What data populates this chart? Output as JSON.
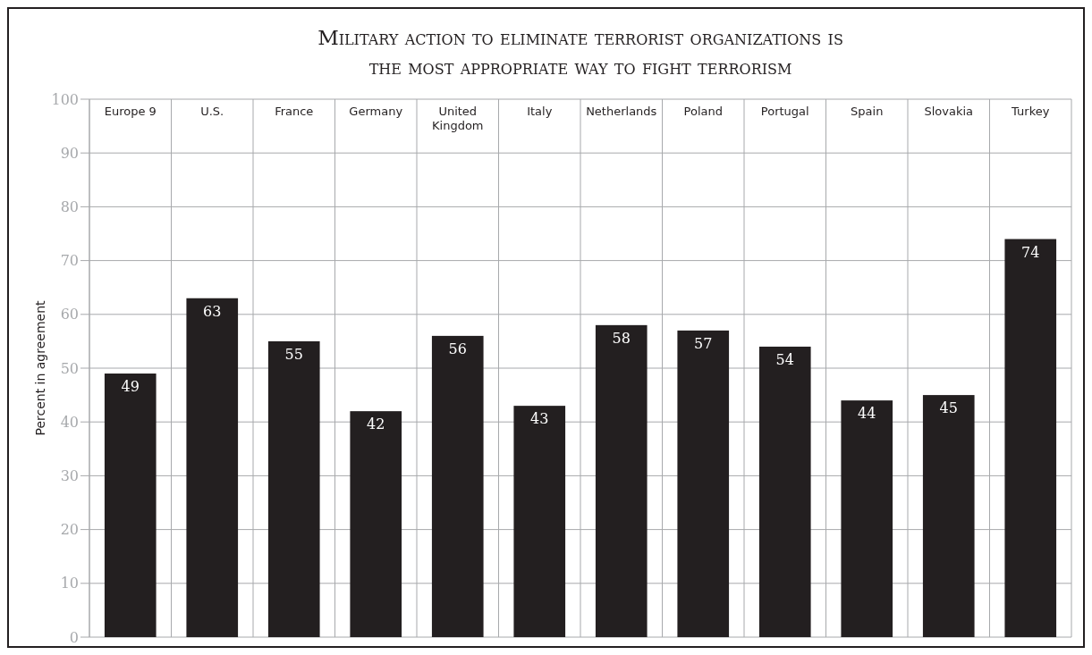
{
  "chart_data": {
    "type": "bar",
    "title": "Military action to eliminate terrorist organizations is the most appropriate way to fight terrorism",
    "ylabel": "Percent in agreement",
    "categories": [
      "Europe 9",
      "U.S.",
      "France",
      "Germany",
      "United Kingdom",
      "Italy",
      "Netherlands",
      "Poland",
      "Portugal",
      "Spain",
      "Slovakia",
      "Turkey"
    ],
    "values": [
      49,
      63,
      55,
      42,
      56,
      43,
      58,
      57,
      54,
      44,
      45,
      74
    ],
    "color": "#231f20",
    "ylim": [
      0,
      100
    ],
    "yticks": [
      0,
      10,
      20,
      30,
      40,
      50,
      60,
      70,
      80,
      90,
      100
    ],
    "grid": true,
    "data_labels": true
  }
}
